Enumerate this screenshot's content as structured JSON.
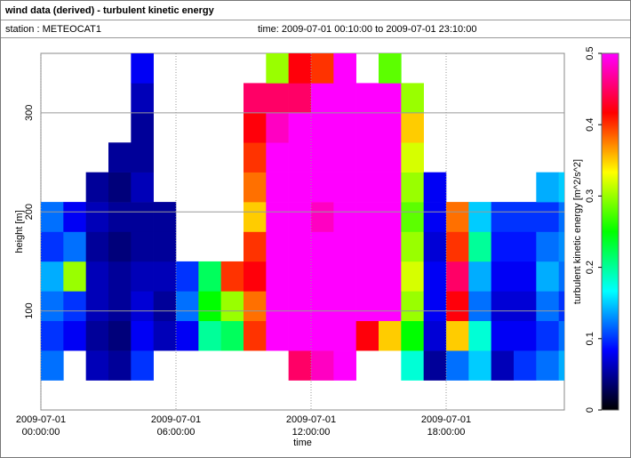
{
  "header": {
    "title": "wind data (derived) - turbulent kinetic energy",
    "station": "station : METEOCAT1",
    "time": "time: 2009-07-01 00:10:00 to 2009-07-01 23:10:00"
  },
  "chart_data": {
    "type": "heatmap",
    "xlabel": "time",
    "ylabel": "height [m]",
    "x": [
      "2009-07-01 00:00:00",
      "2009-07-01 01:00:00",
      "2009-07-01 02:00:00",
      "2009-07-01 03:00:00",
      "2009-07-01 04:00:00",
      "2009-07-01 05:00:00",
      "2009-07-01 06:00:00",
      "2009-07-01 07:00:00",
      "2009-07-01 08:00:00",
      "2009-07-01 09:00:00",
      "2009-07-01 10:00:00",
      "2009-07-01 11:00:00",
      "2009-07-01 12:00:00",
      "2009-07-01 13:00:00",
      "2009-07-01 14:00:00",
      "2009-07-01 15:00:00",
      "2009-07-01 16:00:00",
      "2009-07-01 17:00:00",
      "2009-07-01 18:00:00",
      "2009-07-01 19:00:00",
      "2009-07-01 20:00:00",
      "2009-07-01 21:00:00",
      "2009-07-01 22:00:00",
      "2009-07-01 23:00:00"
    ],
    "y": [
      30,
      60,
      90,
      120,
      150,
      180,
      210,
      240,
      270,
      300,
      330
    ],
    "values": [
      [
        0.12,
        0.1,
        0.12,
        0.14,
        0.1,
        0.12,
        null,
        null,
        null,
        null,
        null
      ],
      [
        null,
        0.08,
        0.1,
        0.3,
        0.12,
        0.08,
        null,
        null,
        null,
        null,
        null
      ],
      [
        0.06,
        0.05,
        0.06,
        0.06,
        0.05,
        0.06,
        0.05,
        null,
        null,
        null,
        null
      ],
      [
        0.05,
        0.04,
        0.05,
        0.05,
        0.04,
        0.05,
        0.04,
        0.05,
        null,
        null,
        null
      ],
      [
        0.1,
        0.08,
        0.07,
        0.06,
        0.05,
        0.05,
        0.06,
        0.05,
        0.05,
        0.06,
        0.08
      ],
      [
        null,
        0.06,
        0.05,
        0.06,
        0.05,
        0.05,
        null,
        null,
        null,
        null,
        null
      ],
      [
        null,
        0.08,
        0.12,
        0.1,
        null,
        null,
        null,
        null,
        null,
        null,
        null
      ],
      [
        null,
        0.2,
        0.25,
        0.22,
        null,
        null,
        null,
        null,
        null,
        null,
        null
      ],
      [
        null,
        0.22,
        0.3,
        0.4,
        null,
        null,
        null,
        null,
        null,
        null,
        null
      ],
      [
        null,
        0.4,
        0.38,
        0.42,
        0.4,
        0.35,
        0.38,
        0.4,
        0.42,
        0.45,
        null
      ],
      [
        null,
        0.5,
        0.5,
        0.5,
        0.5,
        0.5,
        0.5,
        0.5,
        0.48,
        0.45,
        0.3
      ],
      [
        0.45,
        0.5,
        0.5,
        0.5,
        0.5,
        0.5,
        0.5,
        0.5,
        0.5,
        0.45,
        0.42
      ],
      [
        0.48,
        0.5,
        0.5,
        0.5,
        0.5,
        0.48,
        0.5,
        0.5,
        0.5,
        0.5,
        0.4
      ],
      [
        0.5,
        0.5,
        0.5,
        0.5,
        0.5,
        0.5,
        0.5,
        0.5,
        0.5,
        0.5,
        0.5
      ],
      [
        null,
        0.42,
        0.5,
        0.5,
        0.5,
        0.5,
        0.5,
        0.5,
        0.5,
        0.5,
        null
      ],
      [
        null,
        0.35,
        0.5,
        0.5,
        0.5,
        0.5,
        0.5,
        0.5,
        0.5,
        0.5,
        0.28
      ],
      [
        0.18,
        0.25,
        0.3,
        0.32,
        0.3,
        0.28,
        0.3,
        0.32,
        0.35,
        0.3,
        null
      ],
      [
        0.05,
        0.07,
        0.08,
        0.08,
        0.07,
        0.08,
        0.08,
        null,
        null,
        null,
        null
      ],
      [
        0.12,
        0.35,
        0.42,
        0.45,
        0.4,
        0.38,
        null,
        null,
        null,
        null,
        null
      ],
      [
        0.15,
        0.18,
        0.12,
        0.14,
        0.2,
        0.15,
        null,
        null,
        null,
        null,
        null
      ],
      [
        0.06,
        0.08,
        0.07,
        0.08,
        0.09,
        0.1,
        null,
        null,
        null,
        null,
        null
      ],
      [
        0.1,
        0.08,
        0.07,
        0.08,
        0.09,
        0.1,
        null,
        null,
        null,
        null,
        null
      ],
      [
        0.12,
        0.1,
        0.12,
        0.14,
        0.12,
        0.1,
        0.14,
        null,
        null,
        null,
        null
      ],
      [
        0.14,
        0.12,
        0.1,
        0.12,
        0.13,
        0.12,
        0.15,
        null,
        null,
        null,
        null
      ]
    ],
    "xlim": [
      "2009-07-01 00:00:00",
      "2009-07-01 23:15:00"
    ],
    "xticks": [
      "2009-07-01 00:00:00",
      "2009-07-01 06:00:00",
      "2009-07-01 12:00:00",
      "2009-07-01 18:00:00"
    ],
    "ylim": [
      0,
      360
    ],
    "yticks": [
      100,
      200,
      300
    ],
    "grid": true,
    "colorbar": {
      "label": "turbulent kinetic energy [m^2/s^2]",
      "lim": [
        0,
        0.5
      ],
      "ticks": [
        0,
        0.1,
        0.2,
        0.3,
        0.4,
        0.5
      ],
      "colormap": [
        "#000000",
        "#0000ff",
        "#00ffff",
        "#00ff00",
        "#ffff00",
        "#ff0000",
        "#ff00ff"
      ]
    }
  }
}
